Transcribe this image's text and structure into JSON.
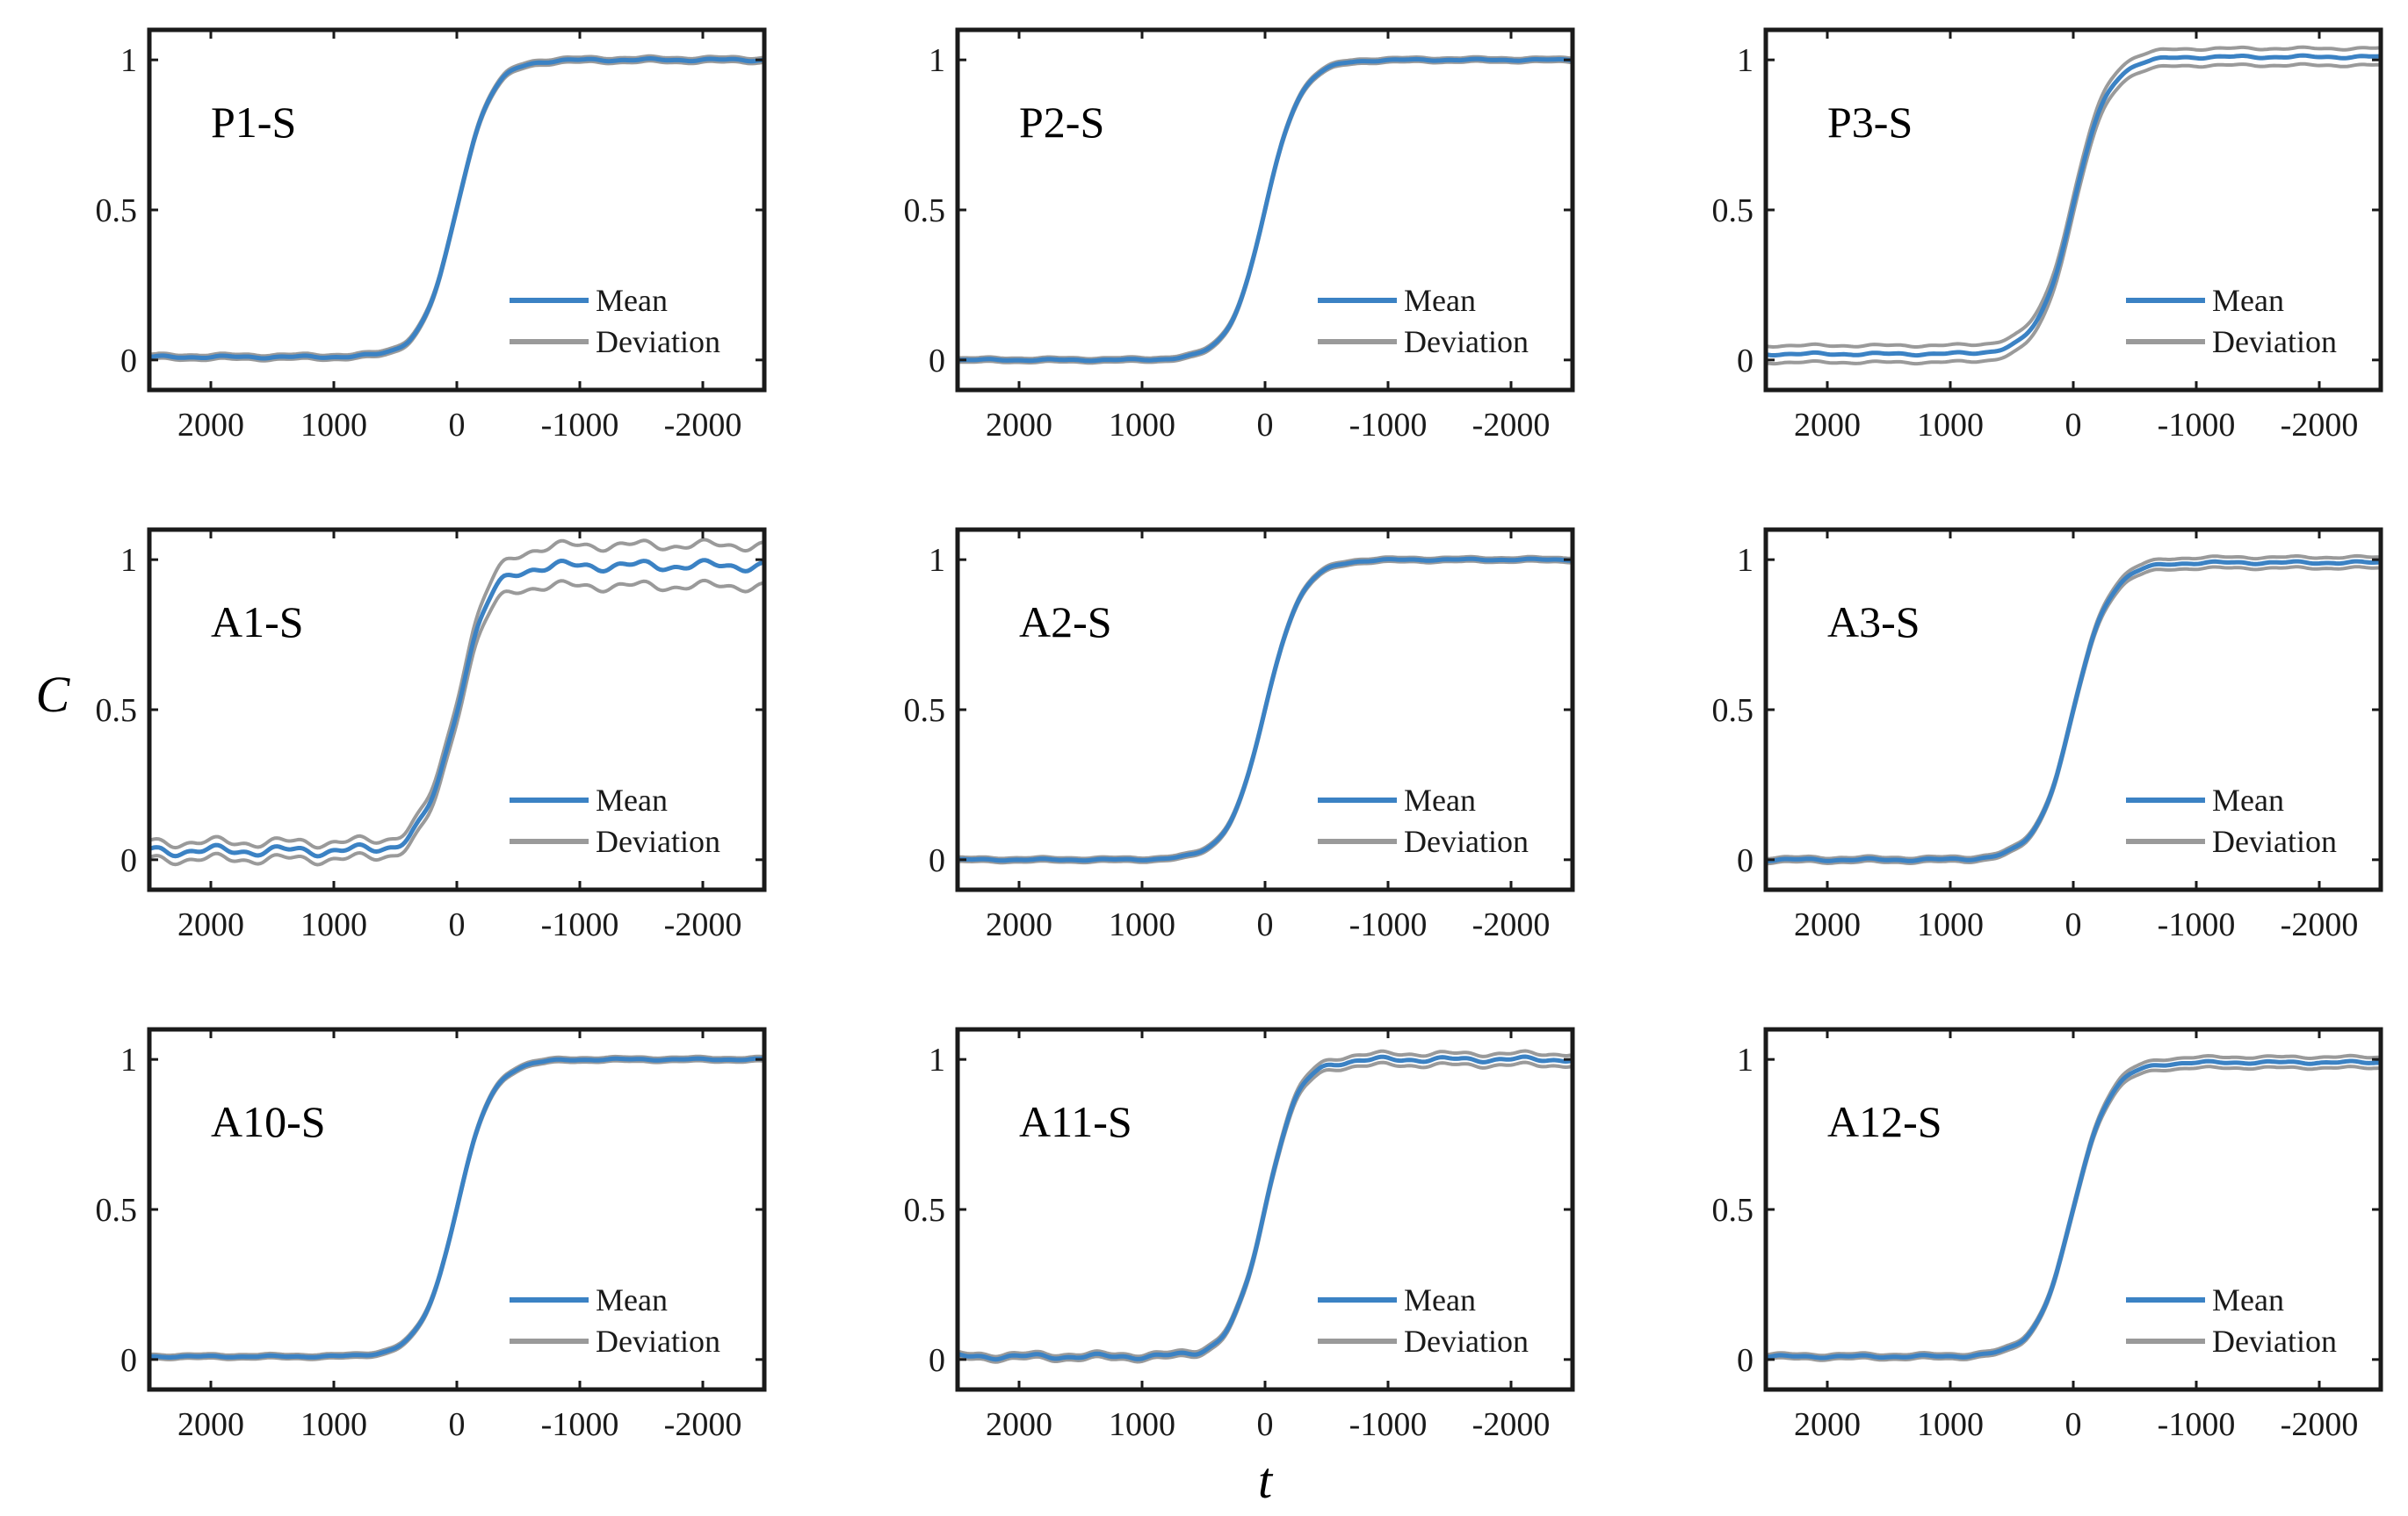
{
  "chart_data": {
    "type": "line",
    "layout": "3x3 grid of subplots",
    "xlabel": "t",
    "ylabel": "C",
    "shared_axes": {
      "xlim": [
        2500,
        -2500
      ],
      "ylim": [
        -0.1,
        1.1
      ],
      "x_ticks": [
        2000,
        1000,
        0,
        -1000,
        -2000
      ],
      "x_tick_labels": [
        "2000",
        "1000",
        "0",
        "-1000",
        "-2000"
      ],
      "y_ticks": [
        0,
        0.5,
        1
      ],
      "y_tick_labels": [
        "0",
        "0.5",
        "1"
      ]
    },
    "legend": {
      "placement": "bottom-right",
      "entries": [
        {
          "label": "Mean",
          "color": "#3b82c4"
        },
        {
          "label": "Deviation",
          "color": "#9a9a9a"
        }
      ]
    },
    "colors": {
      "mean": "#3b82c4",
      "deviation": "#9a9a9a",
      "axes": "#1a1a1a"
    },
    "panels": [
      {
        "label": "P1-S",
        "left": 0.01,
        "right": 1.0,
        "steepness": 0.0072,
        "spread": 0.008,
        "right_drift": 0.0,
        "wobble": 0.003
      },
      {
        "label": "P2-S",
        "left": 0.0,
        "right": 1.0,
        "steepness": 0.007,
        "spread": 0.007,
        "right_drift": 0.0,
        "wobble": 0.002
      },
      {
        "label": "P3-S",
        "left": 0.02,
        "right": 1.01,
        "steepness": 0.007,
        "spread": 0.028,
        "right_drift": 0.0,
        "wobble": 0.003
      },
      {
        "label": "A1-S",
        "left": 0.03,
        "right": 0.98,
        "steepness": 0.0075,
        "spread": 0.028,
        "right_drift": 0.04,
        "wobble": 0.012
      },
      {
        "label": "A2-S",
        "left": 0.0,
        "right": 1.0,
        "steepness": 0.0068,
        "spread": 0.007,
        "right_drift": 0.0,
        "wobble": 0.002
      },
      {
        "label": "A3-S",
        "left": 0.0,
        "right": 0.99,
        "steepness": 0.0068,
        "spread": 0.008,
        "right_drift": 0.01,
        "wobble": 0.003
      },
      {
        "label": "A10-S",
        "left": 0.01,
        "right": 1.0,
        "steepness": 0.007,
        "spread": 0.007,
        "right_drift": 0.0,
        "wobble": 0.002
      },
      {
        "label": "A11-S",
        "left": 0.01,
        "right": 1.0,
        "steepness": 0.0075,
        "spread": 0.009,
        "right_drift": 0.01,
        "wobble": 0.006
      },
      {
        "label": "A12-S",
        "left": 0.01,
        "right": 0.99,
        "steepness": 0.0068,
        "spread": 0.008,
        "right_drift": 0.01,
        "wobble": 0.003
      }
    ]
  }
}
